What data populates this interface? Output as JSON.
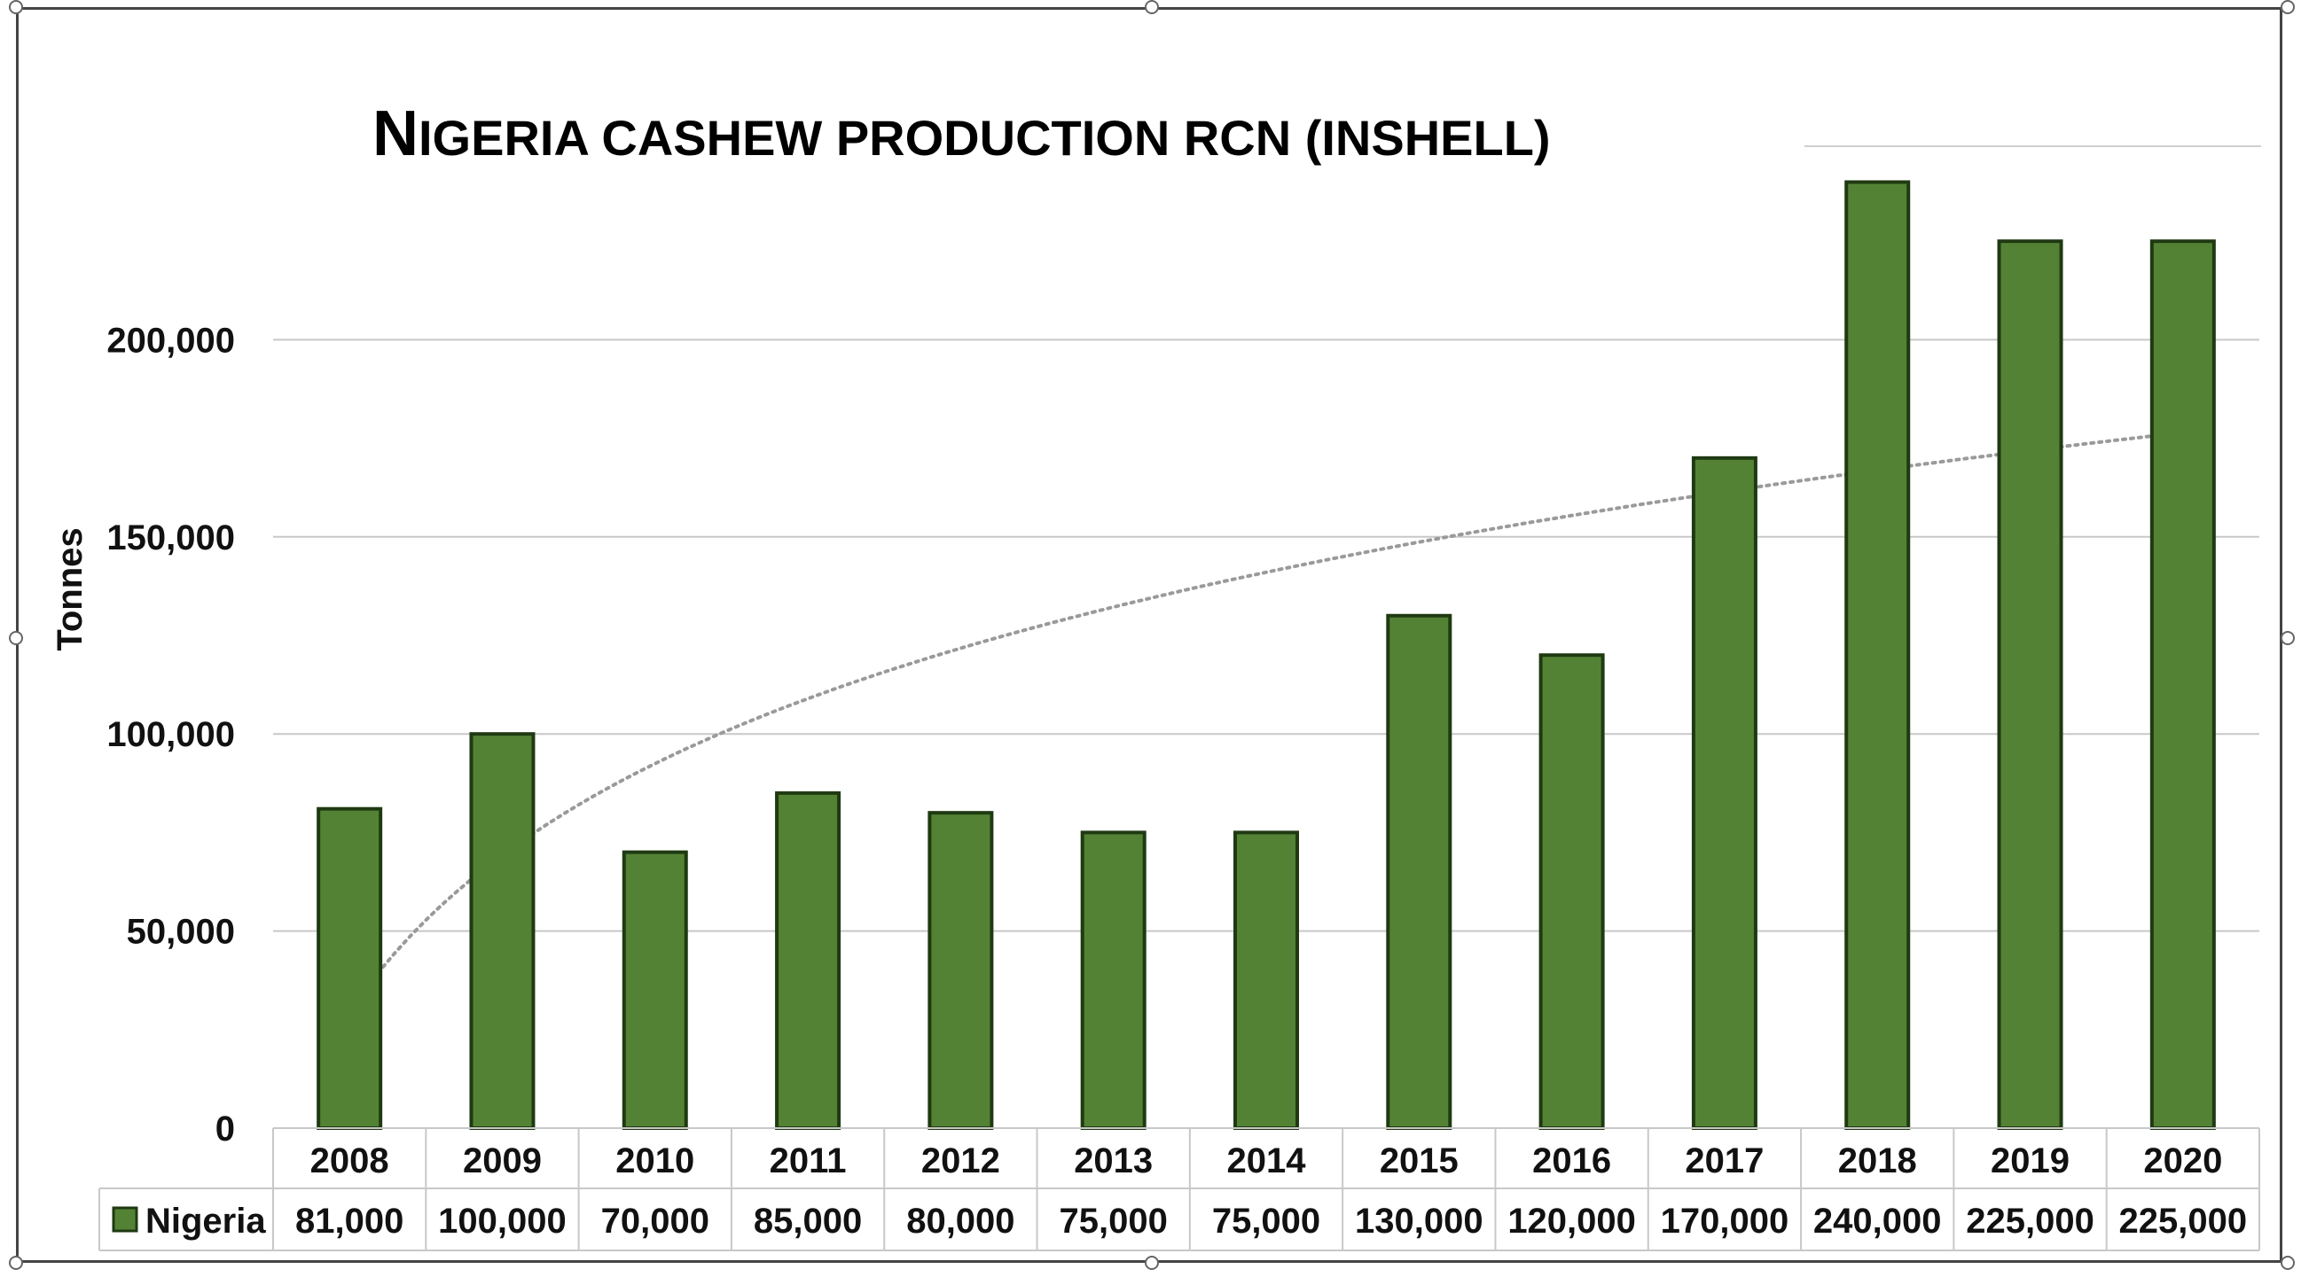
{
  "chart_data": {
    "type": "bar",
    "title": "NIGERIA CASHEW PRODUCTION RCN (INSHELL)",
    "ylabel": "Tonnes",
    "xlabel": "",
    "ylim": [
      0,
      250000
    ],
    "yticks": [
      "0",
      "50,000",
      "100,000",
      "150,000",
      "200,000"
    ],
    "ytick_values": [
      0,
      50000,
      100000,
      150000,
      200000
    ],
    "categories": [
      "2008",
      "2009",
      "2010",
      "2011",
      "2012",
      "2013",
      "2014",
      "2015",
      "2016",
      "2017",
      "2018",
      "2019",
      "2020"
    ],
    "series": [
      {
        "name": "Nigeria",
        "color": "#548235",
        "values": [
          81000,
          100000,
          70000,
          85000,
          80000,
          75000,
          75000,
          130000,
          120000,
          170000,
          240000,
          225000,
          225000
        ],
        "labels": [
          "81,000",
          "100,000",
          "70,000",
          "85,000",
          "80,000",
          "75,000",
          "75,000",
          "130,000",
          "120,000",
          "170,000",
          "240,000",
          "225,000",
          "225,000"
        ]
      }
    ],
    "trendline": {
      "type": "logarithmic",
      "style": "dotted",
      "color": "#999999"
    },
    "grid": true,
    "data_table": true
  }
}
